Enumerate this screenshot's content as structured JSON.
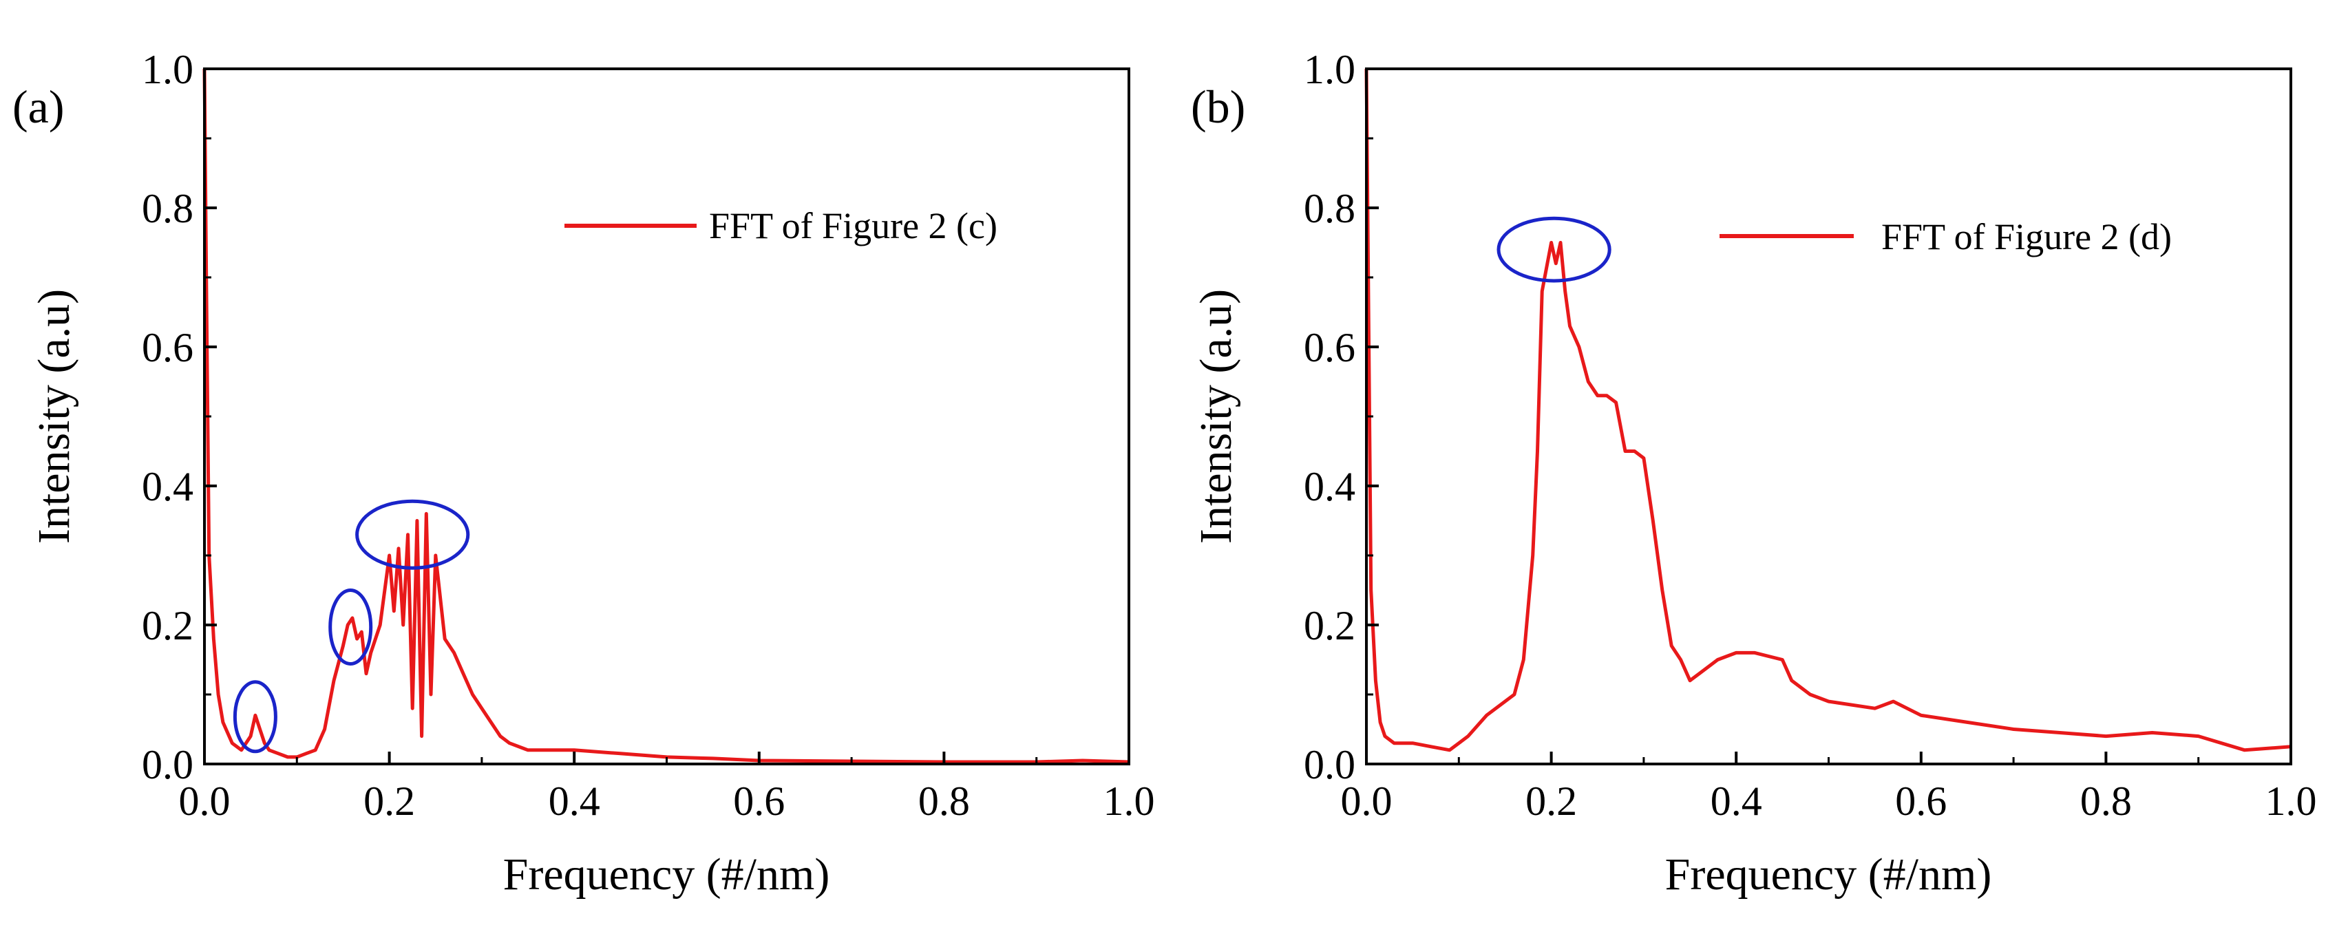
{
  "chart_data": [
    {
      "panel": "(a)",
      "type": "line",
      "xlabel": "Frequency (#/nm)",
      "ylabel": "Intensity (a.u)",
      "xlim": [
        0.0,
        1.0
      ],
      "ylim": [
        0.0,
        1.0
      ],
      "x_ticks": [
        "0.0",
        "0.2",
        "0.4",
        "0.6",
        "0.8",
        "1.0"
      ],
      "y_ticks": [
        "0.0",
        "0.2",
        "0.4",
        "0.6",
        "0.8",
        "1.0"
      ],
      "legend": {
        "label": "FFT of Figure 2 (c)",
        "position": "top-right"
      },
      "line_color": "#e8191a",
      "highlight_color": "#1a24c9",
      "grid": false,
      "series": [
        {
          "name": "FFT of Figure 2 (c)",
          "x": [
            0.0,
            0.002,
            0.005,
            0.01,
            0.015,
            0.02,
            0.03,
            0.04,
            0.05,
            0.055,
            0.06,
            0.065,
            0.07,
            0.08,
            0.09,
            0.1,
            0.11,
            0.12,
            0.13,
            0.14,
            0.15,
            0.155,
            0.16,
            0.165,
            0.17,
            0.175,
            0.18,
            0.19,
            0.2,
            0.205,
            0.21,
            0.215,
            0.22,
            0.225,
            0.23,
            0.235,
            0.24,
            0.245,
            0.25,
            0.26,
            0.27,
            0.28,
            0.29,
            0.3,
            0.31,
            0.32,
            0.33,
            0.35,
            0.4,
            0.45,
            0.5,
            0.55,
            0.6,
            0.7,
            0.8,
            0.9,
            0.95,
            1.0
          ],
          "y": [
            1.0,
            0.7,
            0.3,
            0.18,
            0.1,
            0.06,
            0.03,
            0.02,
            0.04,
            0.07,
            0.05,
            0.03,
            0.02,
            0.015,
            0.01,
            0.01,
            0.015,
            0.02,
            0.05,
            0.12,
            0.17,
            0.2,
            0.21,
            0.18,
            0.19,
            0.13,
            0.16,
            0.2,
            0.3,
            0.22,
            0.31,
            0.2,
            0.33,
            0.08,
            0.35,
            0.04,
            0.36,
            0.1,
            0.3,
            0.18,
            0.16,
            0.13,
            0.1,
            0.08,
            0.06,
            0.04,
            0.03,
            0.02,
            0.02,
            0.015,
            0.01,
            0.008,
            0.005,
            0.004,
            0.003,
            0.003,
            0.005,
            0.003
          ]
        }
      ],
      "highlights": [
        {
          "cx": 0.055,
          "cy": 0.068,
          "rx": 0.022,
          "ry": 0.05
        },
        {
          "cx": 0.158,
          "cy": 0.197,
          "rx": 0.022,
          "ry": 0.053
        },
        {
          "cx": 0.225,
          "cy": 0.33,
          "rx": 0.06,
          "ry": 0.048
        }
      ]
    },
    {
      "panel": "(b)",
      "type": "line",
      "xlabel": "Frequency (#/nm)",
      "ylabel": "Intensity (a.u)",
      "xlim": [
        0.0,
        1.0
      ],
      "ylim": [
        0.0,
        1.0
      ],
      "x_ticks": [
        "0.0",
        "0.2",
        "0.4",
        "0.6",
        "0.8",
        "1.0"
      ],
      "y_ticks": [
        "0.0",
        "0.2",
        "0.4",
        "0.6",
        "0.8",
        "1.0"
      ],
      "legend": {
        "label": "FFT of Figure 2 (d)",
        "position": "top-right"
      },
      "line_color": "#e8191a",
      "highlight_color": "#1a24c9",
      "grid": false,
      "series": [
        {
          "name": "FFT of Figure 2 (d)",
          "x": [
            0.0,
            0.002,
            0.005,
            0.01,
            0.015,
            0.02,
            0.03,
            0.05,
            0.07,
            0.09,
            0.1,
            0.11,
            0.13,
            0.15,
            0.16,
            0.17,
            0.18,
            0.185,
            0.19,
            0.2,
            0.205,
            0.21,
            0.215,
            0.22,
            0.23,
            0.24,
            0.25,
            0.26,
            0.27,
            0.28,
            0.29,
            0.3,
            0.31,
            0.32,
            0.33,
            0.34,
            0.35,
            0.36,
            0.38,
            0.4,
            0.42,
            0.45,
            0.46,
            0.48,
            0.5,
            0.55,
            0.57,
            0.6,
            0.65,
            0.7,
            0.75,
            0.8,
            0.85,
            0.9,
            0.95,
            1.0
          ],
          "y": [
            1.0,
            0.7,
            0.25,
            0.12,
            0.06,
            0.04,
            0.03,
            0.03,
            0.025,
            0.02,
            0.03,
            0.04,
            0.07,
            0.09,
            0.1,
            0.15,
            0.3,
            0.45,
            0.68,
            0.75,
            0.72,
            0.75,
            0.68,
            0.63,
            0.6,
            0.55,
            0.53,
            0.53,
            0.52,
            0.45,
            0.45,
            0.44,
            0.35,
            0.25,
            0.17,
            0.15,
            0.12,
            0.13,
            0.15,
            0.16,
            0.16,
            0.15,
            0.12,
            0.1,
            0.09,
            0.08,
            0.09,
            0.07,
            0.06,
            0.05,
            0.045,
            0.04,
            0.045,
            0.04,
            0.02,
            0.025
          ]
        }
      ],
      "highlights": [
        {
          "cx": 0.203,
          "cy": 0.74,
          "rx": 0.06,
          "ry": 0.045
        }
      ]
    }
  ]
}
